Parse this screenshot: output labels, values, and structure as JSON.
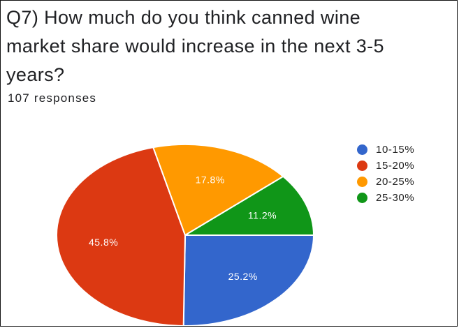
{
  "question": {
    "lines": [
      "Q7) How much do you think canned wine",
      "market share would increase in the next 3-5",
      "years?"
    ],
    "responses_label": "107 responses"
  },
  "chart_data": {
    "type": "pie",
    "title": "Q7) How much do you think canned wine market share would increase in the next 3-5 years?",
    "subtitle": "107 responses",
    "legend_position": "right",
    "slices": [
      {
        "label": "10-15%",
        "value": 25.2,
        "display": "25.2%",
        "color": "#3366cc"
      },
      {
        "label": "15-20%",
        "value": 45.8,
        "display": "45.8%",
        "color": "#dc3912"
      },
      {
        "label": "20-25%",
        "value": 17.8,
        "display": "17.8%",
        "color": "#ff9900"
      },
      {
        "label": "25-30%",
        "value": 11.2,
        "display": "11.2%",
        "color": "#109618"
      }
    ]
  }
}
